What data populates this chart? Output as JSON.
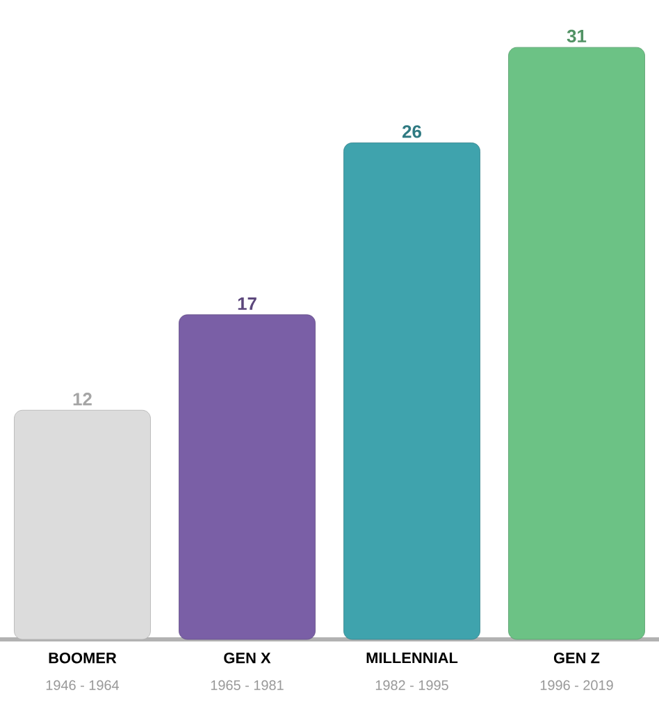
{
  "chart_data": {
    "type": "bar",
    "categories": [
      "BOOMER",
      "GEN X",
      "MILLENNIAL",
      "GEN Z"
    ],
    "values": [
      12,
      17,
      26,
      31
    ],
    "colors": [
      "#dcdcdc",
      "#7a5fa6",
      "#3fa3ad",
      "#6cc285"
    ],
    "data_labels": true,
    "annotations": [
      "1946 - 1964",
      "1965 - 1981",
      "1982 - 1995",
      "1996 - 2019"
    ]
  }
}
